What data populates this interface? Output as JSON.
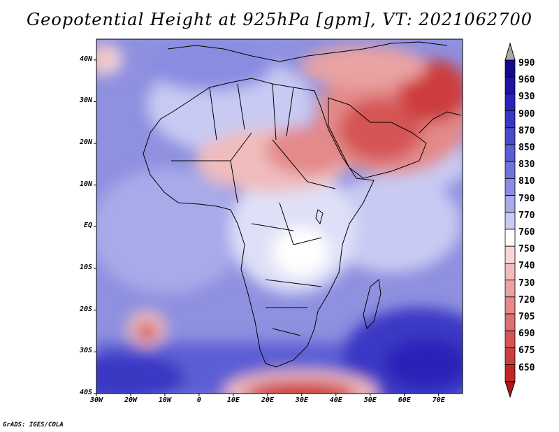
{
  "title": "Geopotential Height at 925hPa [gpm], VT: 2021062700",
  "credit": "GrADS: IGES/COLA",
  "map": {
    "variable": "Geopotential Height",
    "level": "925hPa",
    "units": "gpm",
    "valid_time": "2021062700",
    "lon_range": [
      -30,
      77
    ],
    "lat_range": [
      -40,
      45
    ],
    "lat_ticks": [
      {
        "value": 40,
        "label": "40N"
      },
      {
        "value": 30,
        "label": "30N"
      },
      {
        "value": 20,
        "label": "20N"
      },
      {
        "value": 10,
        "label": "10N"
      },
      {
        "value": 0,
        "label": "EQ"
      },
      {
        "value": -10,
        "label": "10S"
      },
      {
        "value": -20,
        "label": "20S"
      },
      {
        "value": -30,
        "label": "30S"
      },
      {
        "value": -40,
        "label": "40S"
      }
    ],
    "lon_ticks": [
      {
        "value": -30,
        "label": "30W"
      },
      {
        "value": -20,
        "label": "20W"
      },
      {
        "value": -10,
        "label": "10W"
      },
      {
        "value": 0,
        "label": "0"
      },
      {
        "value": 10,
        "label": "10E"
      },
      {
        "value": 20,
        "label": "20E"
      },
      {
        "value": 30,
        "label": "30E"
      },
      {
        "value": 40,
        "label": "40E"
      },
      {
        "value": 50,
        "label": "50E"
      },
      {
        "value": 60,
        "label": "60E"
      },
      {
        "value": 70,
        "label": "70E"
      }
    ]
  },
  "colorbar": {
    "levels": [
      {
        "label": "990",
        "color": "#120a8f"
      },
      {
        "label": "960",
        "color": "#1e13a5"
      },
      {
        "label": "930",
        "color": "#2b24b8"
      },
      {
        "label": "900",
        "color": "#3a37c4"
      },
      {
        "label": "870",
        "color": "#4a4bcc"
      },
      {
        "label": "850",
        "color": "#5b5fd4"
      },
      {
        "label": "830",
        "color": "#7073da"
      },
      {
        "label": "810",
        "color": "#8a8ce2"
      },
      {
        "label": "790",
        "color": "#a8aaea"
      },
      {
        "label": "770",
        "color": "#c8caf3"
      },
      {
        "label": "760",
        "color": "#ffffff"
      },
      {
        "label": "750",
        "color": "#f6d6d6"
      },
      {
        "label": "740",
        "color": "#f0bcbc"
      },
      {
        "label": "730",
        "color": "#e9a3a3"
      },
      {
        "label": "720",
        "color": "#e38a8a"
      },
      {
        "label": "705",
        "color": "#dc7070"
      },
      {
        "label": "690",
        "color": "#d55555"
      },
      {
        "label": "675",
        "color": "#cd3d3d"
      },
      {
        "label": "650",
        "color": "#c12525"
      }
    ],
    "top_arrow_color": "#aaaaaa",
    "bottom_arrow_color": "#b01818"
  }
}
